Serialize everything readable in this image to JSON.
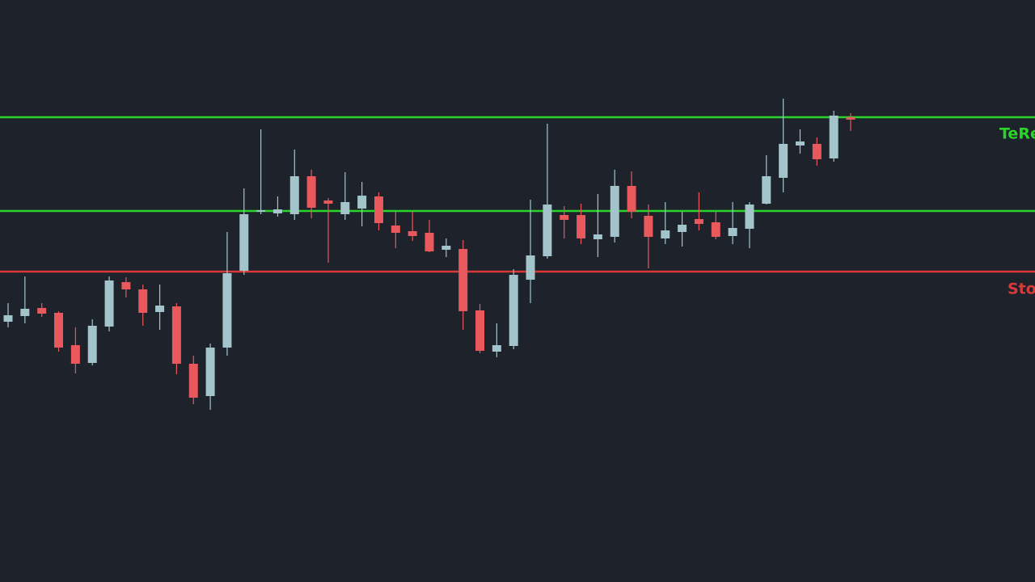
{
  "chart_data": {
    "type": "candlestick",
    "categories": [
      null,
      null,
      null,
      null,
      null,
      null,
      null,
      null,
      null,
      null,
      null,
      null,
      null,
      null,
      null,
      null,
      null,
      null,
      null,
      null,
      null,
      null,
      null,
      null,
      null,
      null,
      null,
      null,
      null,
      null,
      null,
      null,
      null,
      null,
      null,
      null,
      null,
      null,
      null,
      null,
      null,
      null,
      null,
      null,
      null,
      null,
      null,
      null,
      null,
      null,
      null
    ],
    "open": [
      322,
      329,
      339,
      333,
      293,
      271,
      316,
      371,
      362,
      334,
      341,
      270,
      230,
      290,
      385,
      458,
      456,
      455,
      502,
      472,
      455,
      462,
      477,
      441,
      434,
      432,
      411,
      412,
      336,
      285,
      292,
      374,
      403,
      454,
      454,
      424,
      427,
      490,
      453,
      425,
      433,
      449,
      445,
      428,
      437,
      468,
      500,
      540,
      542,
      524,
      575
    ],
    "high": [
      345,
      378,
      345,
      335,
      315,
      325,
      378,
      377,
      368,
      368,
      345,
      280,
      295,
      433,
      487,
      560,
      477,
      535,
      510,
      475,
      507,
      495,
      482,
      458,
      458,
      448,
      425,
      423,
      344,
      320,
      387,
      473,
      567,
      465,
      468,
      480,
      510,
      508,
      467,
      470,
      458,
      482,
      458,
      470,
      470,
      528,
      598,
      560,
      550,
      583,
      580
    ],
    "low": [
      315,
      320,
      328,
      285,
      258,
      268,
      310,
      352,
      317,
      312,
      257,
      220,
      213,
      280,
      380,
      455,
      452,
      448,
      450,
      395,
      448,
      440,
      435,
      413,
      422,
      408,
      402,
      312,
      283,
      278,
      288,
      345,
      400,
      425,
      418,
      402,
      420,
      450,
      388,
      418,
      415,
      435,
      424,
      418,
      413,
      467,
      482,
      530,
      515,
      520,
      558
    ],
    "close": [
      330,
      338,
      332,
      290,
      270,
      317,
      373,
      362,
      333,
      342,
      270,
      228,
      290,
      382,
      455,
      460,
      461,
      502,
      463,
      468,
      470,
      478,
      444,
      432,
      428,
      409,
      416,
      335,
      286,
      293,
      380,
      404,
      467,
      448,
      425,
      430,
      490,
      458,
      427,
      435,
      442,
      443,
      427,
      438,
      467,
      502,
      542,
      545,
      523,
      577,
      572
    ],
    "up_color": "#a3c4cb",
    "down_color": "#e9585d",
    "ylim": [
      0,
      720
    ],
    "levels": [
      {
        "value": 575,
        "label": "TeRe",
        "color": "#2bd42b"
      },
      {
        "value": 459,
        "label": null,
        "color": "#2bd42b"
      },
      {
        "value": 384,
        "label": "Sto",
        "color": "#d83a3a"
      }
    ]
  }
}
